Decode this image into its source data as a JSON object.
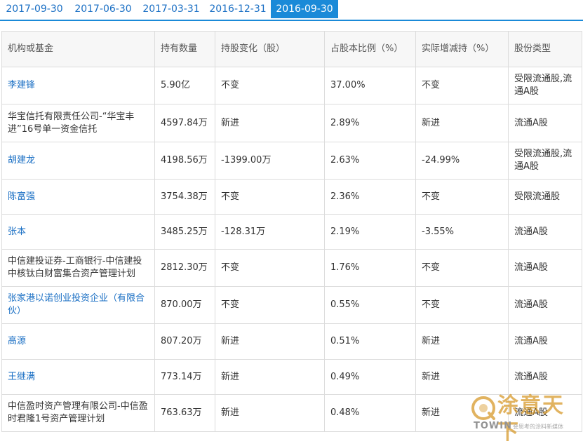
{
  "tabs": [
    {
      "label": "2017-09-30",
      "active": false
    },
    {
      "label": "2017-06-30",
      "active": false
    },
    {
      "label": "2017-03-31",
      "active": false
    },
    {
      "label": "2016-12-31",
      "active": false
    },
    {
      "label": "2016-09-30",
      "active": true
    }
  ],
  "table": {
    "headers": [
      "机构或基金",
      "持有数量",
      "持股变化（股）",
      "占股本比例（%）",
      "实际增减持（%）",
      "股份类型"
    ],
    "rows": [
      {
        "name": "李建锋",
        "is_link": true,
        "quantity": "5.90亿",
        "change": "不变",
        "ratio": "37.00%",
        "actual_change": "不变",
        "share_type": "受限流通股,流通A股"
      },
      {
        "name": "华宝信托有限责任公司-“华宝丰进”16号单一资金信托",
        "is_link": false,
        "quantity": "4597.84万",
        "change": "新进",
        "ratio": "2.89%",
        "actual_change": "新进",
        "share_type": "流通A股"
      },
      {
        "name": "胡建龙",
        "is_link": true,
        "quantity": "4198.56万",
        "change": "-1399.00万",
        "ratio": "2.63%",
        "actual_change": "-24.99%",
        "share_type": "受限流通股,流通A股"
      },
      {
        "name": "陈富强",
        "is_link": true,
        "quantity": "3754.38万",
        "change": "不变",
        "ratio": "2.36%",
        "actual_change": "不变",
        "share_type": "受限流通股"
      },
      {
        "name": "张本",
        "is_link": true,
        "quantity": "3485.25万",
        "change": "-128.31万",
        "ratio": "2.19%",
        "actual_change": "-3.55%",
        "share_type": "流通A股"
      },
      {
        "name": "中信建投证券-工商银行-中信建投中核钛白财富集合资产管理计划",
        "is_link": false,
        "quantity": "2812.30万",
        "change": "不变",
        "ratio": "1.76%",
        "actual_change": "不变",
        "share_type": "流通A股"
      },
      {
        "name": "张家港以诺创业投资企业（有限合伙）",
        "is_link": true,
        "quantity": "870.00万",
        "change": "不变",
        "ratio": "0.55%",
        "actual_change": "不变",
        "share_type": "流通A股"
      },
      {
        "name": "高源",
        "is_link": true,
        "quantity": "807.20万",
        "change": "新进",
        "ratio": "0.51%",
        "actual_change": "新进",
        "share_type": "流通A股"
      },
      {
        "name": "王继满",
        "is_link": true,
        "quantity": "773.14万",
        "change": "新进",
        "ratio": "0.49%",
        "actual_change": "新进",
        "share_type": "流通A股"
      },
      {
        "name": "中信盈时资产管理有限公司-中信盈时君隆1号资产管理计划",
        "is_link": false,
        "quantity": "763.63万",
        "change": "新进",
        "ratio": "0.48%",
        "actual_change": "新进",
        "share_type": "流通A股"
      }
    ]
  },
  "watermark": {
    "brand_cn": "涂意天下",
    "brand_en": "TOWIN",
    "tagline": "会思考的涂料新媒体",
    "color": "#d89a2b"
  }
}
